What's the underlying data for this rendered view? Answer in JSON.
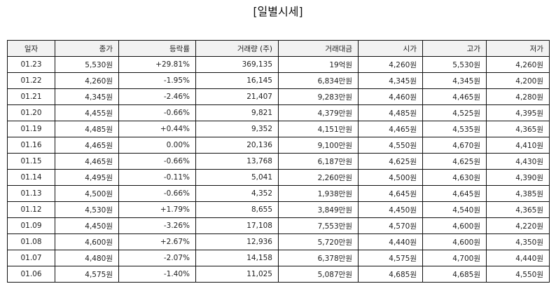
{
  "title": "[일별시세]",
  "columns": [
    "일자",
    "종가",
    "등락률",
    "거래량 (주)",
    "거래대금",
    "시가",
    "고가",
    "저가"
  ],
  "rows": [
    {
      "date": "01.23",
      "close": "5,530원",
      "change": "+29.81%",
      "dir": "up",
      "volume": "369,135",
      "amount": "19억원",
      "open": "4,260원",
      "high": "5,530원",
      "low": "4,260원"
    },
    {
      "date": "01.22",
      "close": "4,260원",
      "change": "-1.95%",
      "dir": "down",
      "volume": "16,145",
      "amount": "6,834만원",
      "open": "4,345원",
      "high": "4,345원",
      "low": "4,200원"
    },
    {
      "date": "01.21",
      "close": "4,345원",
      "change": "-2.46%",
      "dir": "down",
      "volume": "21,407",
      "amount": "9,283만원",
      "open": "4,460원",
      "high": "4,465원",
      "low": "4,280원"
    },
    {
      "date": "01.20",
      "close": "4,455원",
      "change": "-0.66%",
      "dir": "down",
      "volume": "9,821",
      "amount": "4,379만원",
      "open": "4,485원",
      "high": "4,525원",
      "low": "4,395원"
    },
    {
      "date": "01.19",
      "close": "4,485원",
      "change": "+0.44%",
      "dir": "up",
      "volume": "9,352",
      "amount": "4,151만원",
      "open": "4,465원",
      "high": "4,535원",
      "low": "4,365원"
    },
    {
      "date": "01.16",
      "close": "4,465원",
      "change": "0.00%",
      "dir": "flat",
      "volume": "20,136",
      "amount": "9,100만원",
      "open": "4,550원",
      "high": "4,670원",
      "low": "4,410원"
    },
    {
      "date": "01.15",
      "close": "4,465원",
      "change": "-0.66%",
      "dir": "down",
      "volume": "13,768",
      "amount": "6,187만원",
      "open": "4,625원",
      "high": "4,625원",
      "low": "4,430원"
    },
    {
      "date": "01.14",
      "close": "4,495원",
      "change": "-0.11%",
      "dir": "down",
      "volume": "5,041",
      "amount": "2,260만원",
      "open": "4,500원",
      "high": "4,630원",
      "low": "4,390원"
    },
    {
      "date": "01.13",
      "close": "4,500원",
      "change": "-0.66%",
      "dir": "down",
      "volume": "4,352",
      "amount": "1,938만원",
      "open": "4,645원",
      "high": "4,645원",
      "low": "4,385원"
    },
    {
      "date": "01.12",
      "close": "4,530원",
      "change": "+1.79%",
      "dir": "up",
      "volume": "8,655",
      "amount": "3,849만원",
      "open": "4,450원",
      "high": "4,540원",
      "low": "4,365원"
    },
    {
      "date": "01.09",
      "close": "4,450원",
      "change": "-3.26%",
      "dir": "down",
      "volume": "17,108",
      "amount": "7,553만원",
      "open": "4,570원",
      "high": "4,600원",
      "low": "4,220원"
    },
    {
      "date": "01.08",
      "close": "4,600원",
      "change": "+2.67%",
      "dir": "up",
      "volume": "12,936",
      "amount": "5,720만원",
      "open": "4,440원",
      "high": "4,600원",
      "low": "4,350원"
    },
    {
      "date": "01.07",
      "close": "4,480원",
      "change": "-2.07%",
      "dir": "down",
      "volume": "14,158",
      "amount": "6,378만원",
      "open": "4,575원",
      "high": "4,700원",
      "low": "4,440원"
    },
    {
      "date": "01.06",
      "close": "4,575원",
      "change": "-1.40%",
      "dir": "down",
      "volume": "11,025",
      "amount": "5,087만원",
      "open": "4,685원",
      "high": "4,685원",
      "low": "4,550원"
    }
  ],
  "colors": {
    "up": "#e02020",
    "down": "#2330c8",
    "header_bg": "#f2f2f2",
    "border": "#111111"
  }
}
